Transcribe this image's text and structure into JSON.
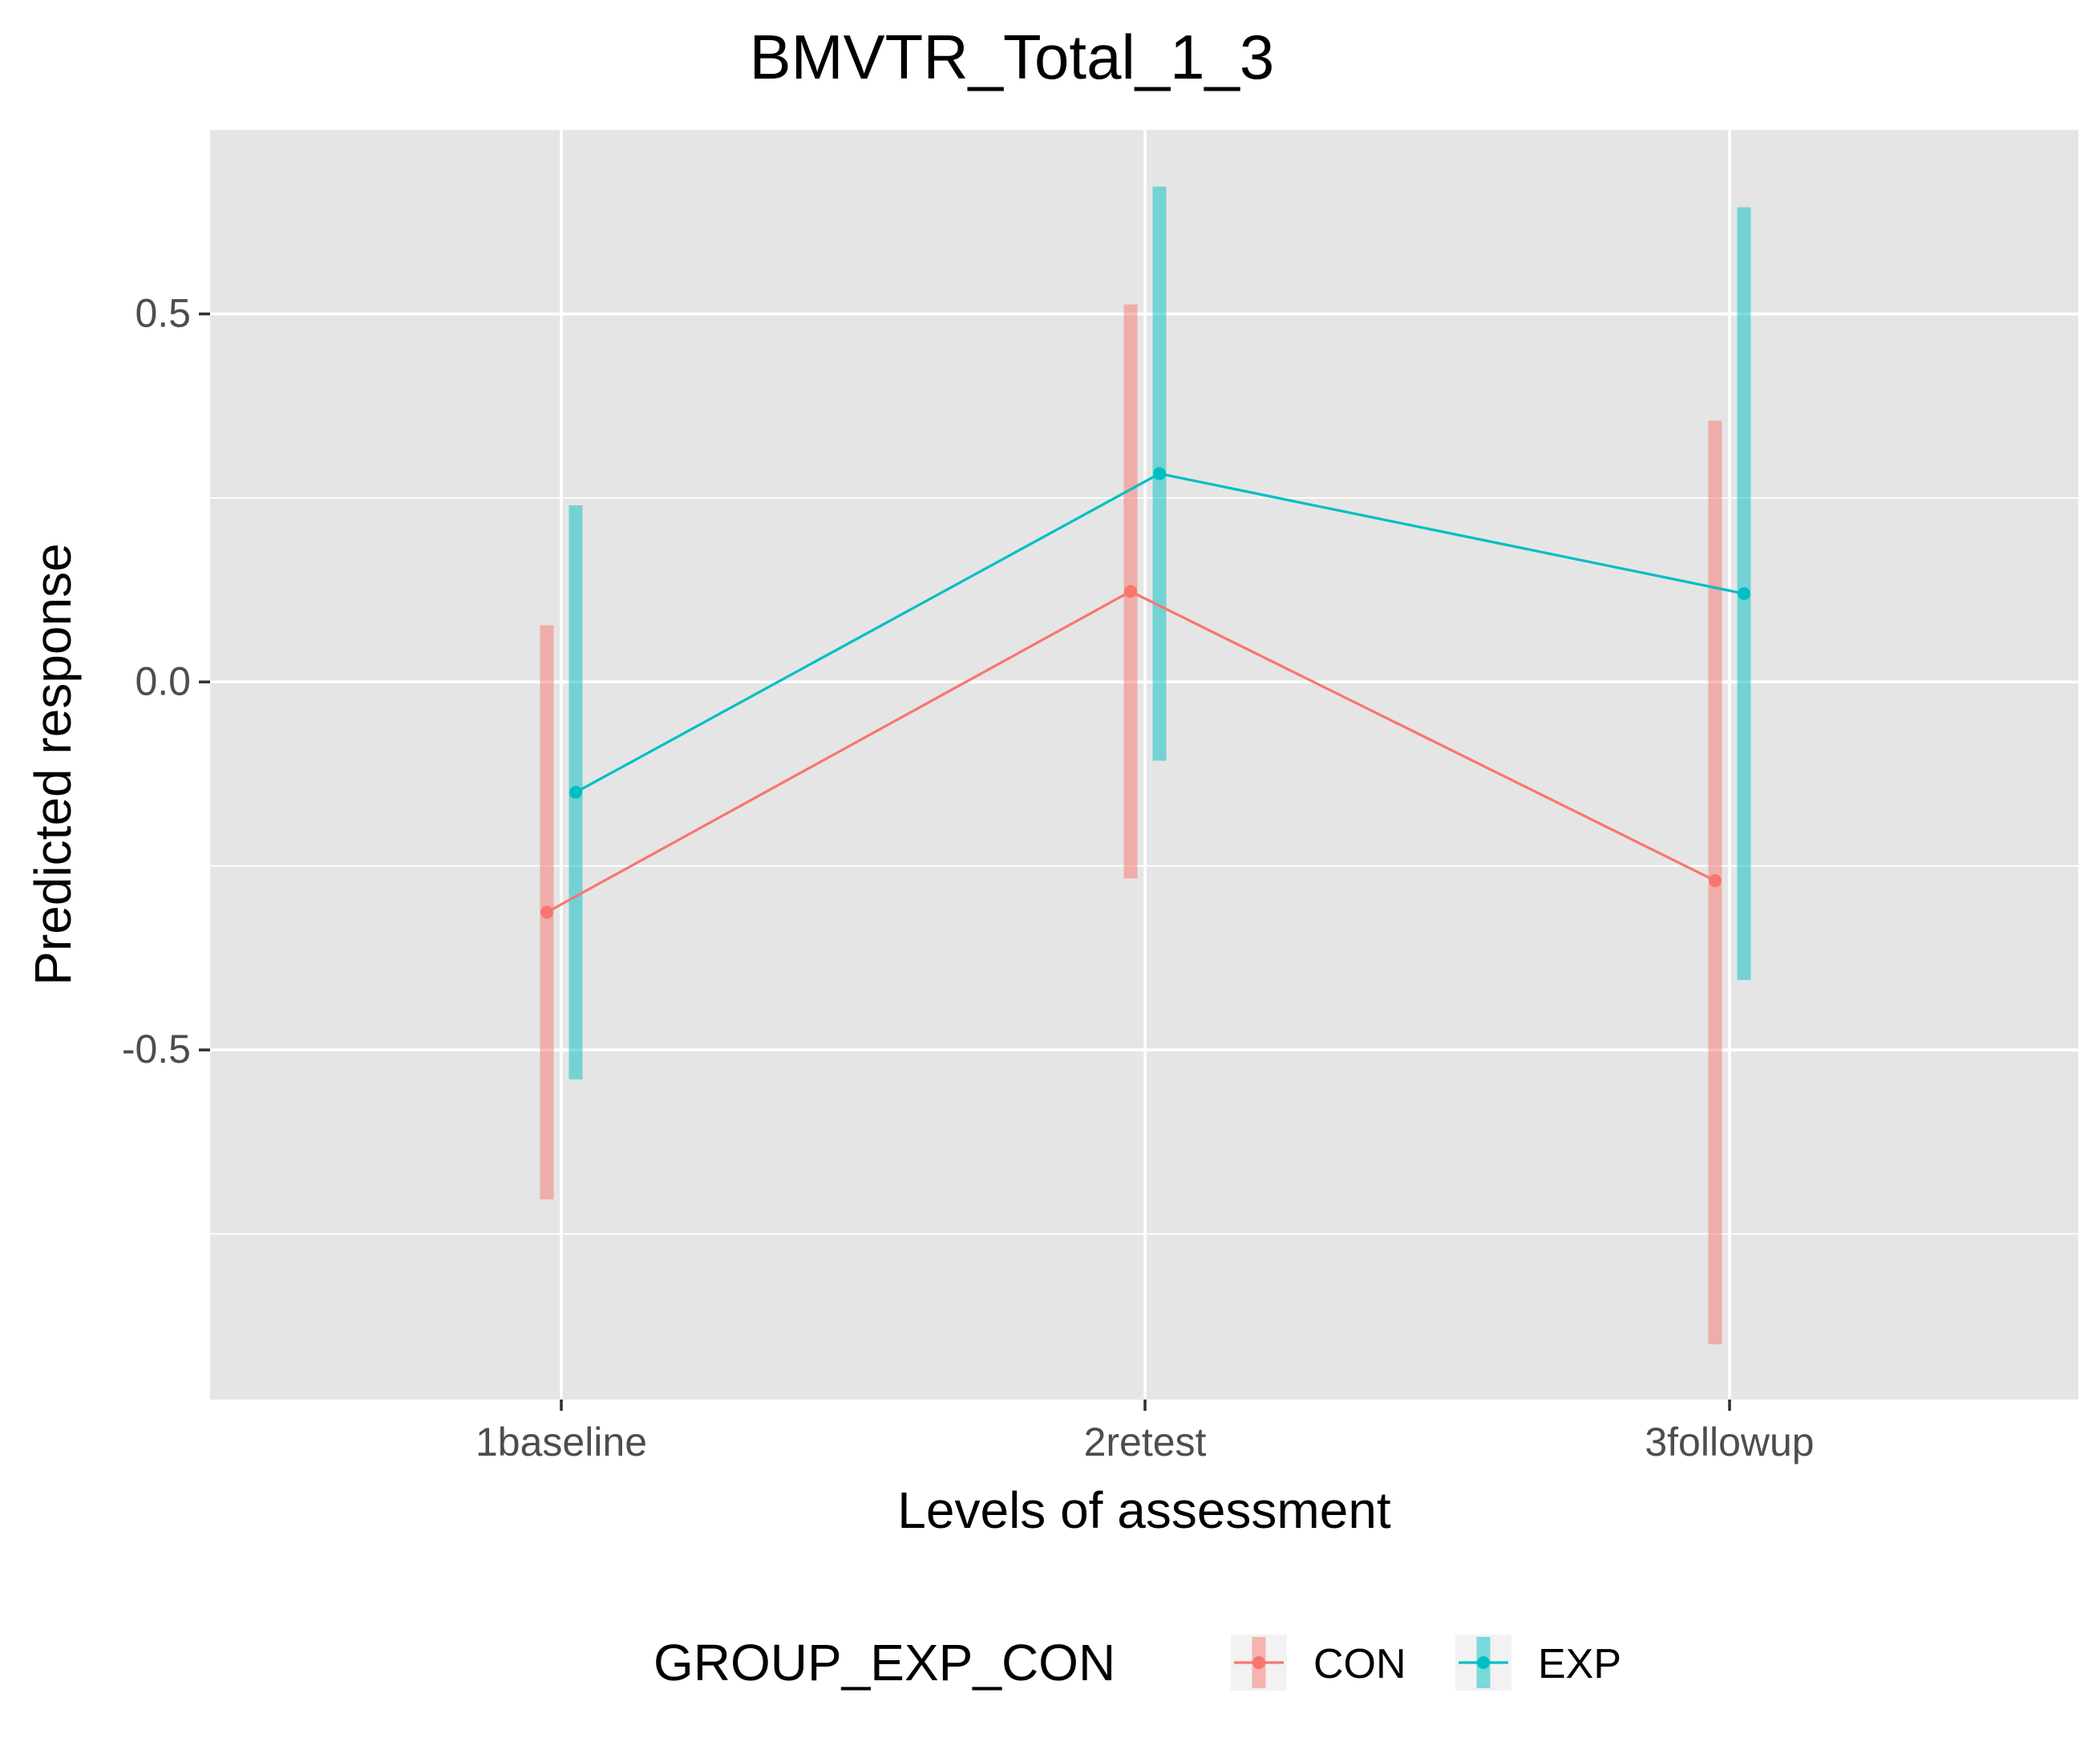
{
  "chart_data": {
    "type": "line",
    "title": "BMVTR_Total_1_3",
    "xlabel": "Levels of assessment",
    "ylabel": "Predicted response",
    "categories": [
      "1baseline",
      "2retest",
      "3followup"
    ],
    "ylim": [
      -0.975,
      0.75
    ],
    "y_ticks": [
      {
        "value": -0.5,
        "label": "-0.5"
      },
      {
        "value": 0.0,
        "label": "0.0"
      },
      {
        "value": 0.5,
        "label": "0.5"
      }
    ],
    "grid": true,
    "legend": {
      "title": "GROUP_EXP_CON",
      "position": "bottom"
    },
    "series": [
      {
        "name": "CON",
        "color": "#F8766D",
        "values": [
          -0.313,
          0.123,
          -0.27
        ],
        "lower": [
          -0.703,
          -0.267,
          -0.9
        ],
        "upper": [
          0.077,
          0.513,
          0.355
        ]
      },
      {
        "name": "EXP",
        "color": "#00BFC4",
        "values": [
          -0.15,
          0.283,
          0.12
        ],
        "lower": [
          -0.54,
          -0.107,
          -0.405
        ],
        "upper": [
          0.24,
          0.673,
          0.645
        ]
      }
    ]
  }
}
